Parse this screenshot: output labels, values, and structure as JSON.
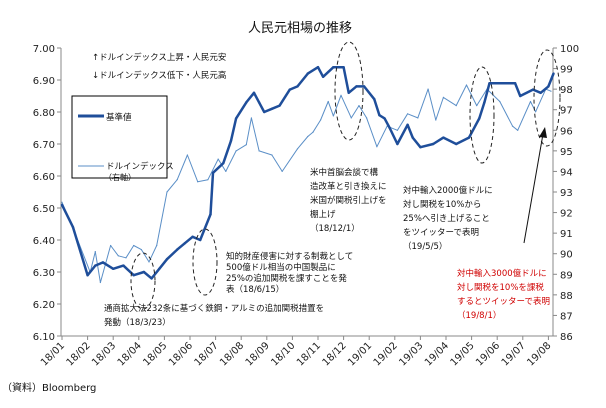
{
  "chart_data": {
    "type": "line",
    "title": "人民元相場の推移",
    "source": "（資料）Bloomberg",
    "x_ticks": [
      "18/01",
      "18/02",
      "18/03",
      "18/04",
      "18/05",
      "18/06",
      "18/07",
      "18/08",
      "18/09",
      "18/10",
      "18/11",
      "18/12",
      "19/01",
      "19/02",
      "19/03",
      "19/04",
      "19/05",
      "19/06",
      "19/07",
      "19/08"
    ],
    "x_unit": "months since 2018-01",
    "y_left": {
      "range": [
        6.1,
        7.0
      ],
      "ticks": [
        "6.10",
        "6.20",
        "6.30",
        "6.40",
        "6.50",
        "6.60",
        "6.70",
        "6.80",
        "6.90",
        "7.00"
      ]
    },
    "y_right": {
      "range": [
        86,
        100
      ],
      "ticks": [
        "86",
        "87",
        "88",
        "89",
        "90",
        "91",
        "92",
        "93",
        "94",
        "95",
        "96",
        "97",
        "98",
        "99",
        "100"
      ]
    },
    "notes": [
      "↑ドルインデックス上昇・人民元安",
      "↓ドルインデックス低下・人民元高"
    ],
    "series": [
      {
        "name": "基準値",
        "axis": "left",
        "color": "#1f4e9a",
        "x": [
          0,
          0.43,
          1.0,
          1.3,
          1.6,
          2.0,
          2.4,
          2.8,
          3.2,
          3.5,
          3.8,
          4.1,
          4.5,
          4.8,
          5.1,
          5.4,
          5.8,
          5.9,
          6.3,
          6.6,
          6.8,
          7.2,
          7.5,
          7.7,
          7.9,
          8.2,
          8.5,
          8.9,
          9.2,
          9.6,
          10.0,
          10.2,
          10.6,
          11.0,
          11.2,
          11.5,
          11.8,
          12.2,
          12.4,
          12.6,
          12.8,
          13.1,
          13.5,
          13.7,
          14.0,
          14.5,
          14.9,
          15.4,
          15.9,
          16.3,
          16.5,
          16.7,
          17.2,
          17.7,
          17.9,
          18.4,
          18.7,
          19.0,
          19.2
        ],
        "values": [
          6.51,
          6.44,
          6.29,
          6.32,
          6.33,
          6.31,
          6.32,
          6.29,
          6.3,
          6.28,
          6.31,
          6.34,
          6.37,
          6.39,
          6.41,
          6.4,
          6.48,
          6.61,
          6.64,
          6.71,
          6.78,
          6.83,
          6.86,
          6.83,
          6.8,
          6.81,
          6.82,
          6.87,
          6.88,
          6.92,
          6.94,
          6.91,
          6.94,
          6.94,
          6.86,
          6.88,
          6.88,
          6.84,
          6.79,
          6.78,
          6.75,
          6.7,
          6.76,
          6.72,
          6.69,
          6.7,
          6.72,
          6.7,
          6.72,
          6.78,
          6.83,
          6.89,
          6.89,
          6.89,
          6.85,
          6.87,
          6.86,
          6.88,
          6.92
        ]
      },
      {
        "name": "ドルインデックス（右軸）",
        "axis": "right",
        "color": "#5b8fc7",
        "x": [
          0,
          0.6,
          1.1,
          1.3,
          1.5,
          1.9,
          2.2,
          2.5,
          2.8,
          3.1,
          3.4,
          3.7,
          4.1,
          4.5,
          4.9,
          5.3,
          5.7,
          6.1,
          6.4,
          6.8,
          7.2,
          7.4,
          7.7,
          8.2,
          8.6,
          9.2,
          9.6,
          9.8,
          10.1,
          10.4,
          10.6,
          10.9,
          11.3,
          11.6,
          11.9,
          12.3,
          12.7,
          13.1,
          13.5,
          13.9,
          14.3,
          14.6,
          14.9,
          15.4,
          15.8,
          16.2,
          16.6,
          17.1,
          17.6,
          17.8,
          18.3,
          18.5,
          18.9,
          19.1
        ],
        "values": [
          92.5,
          90.7,
          89.1,
          90.1,
          88.6,
          90.4,
          89.9,
          89.8,
          90.4,
          90.2,
          89.6,
          90.4,
          93.0,
          93.6,
          94.8,
          93.5,
          93.6,
          94.6,
          94.0,
          95.0,
          95.3,
          96.6,
          95.0,
          94.8,
          94.0,
          95.1,
          95.7,
          95.9,
          96.5,
          97.4,
          96.7,
          97.7,
          96.6,
          97.2,
          96.6,
          95.2,
          96.2,
          96.0,
          96.8,
          96.6,
          98.0,
          96.5,
          97.6,
          97.2,
          98.2,
          97.2,
          98.0,
          97.4,
          96.2,
          96.0,
          97.4,
          96.9,
          98.0,
          97.9
        ]
      }
    ],
    "legend": {
      "placement": "top-left",
      "items": [
        "基準値",
        "ドルインデックス",
        "（右軸）"
      ]
    },
    "annotations": [
      {
        "lines": [
          "通商拡大法232条に基づく鉄鋼・アルミの追加関税措置を",
          "発動（18/3/23）"
        ],
        "color": "#111111"
      },
      {
        "lines": [
          "知的財産侵害に対する制裁として",
          "500億ドル相当の中国製品に",
          "25%の追加関税を課すことを発",
          "表（18/6/15）"
        ],
        "color": "#111111"
      },
      {
        "lines": [
          "米中首脳会談で構",
          "造改革と引き換えに",
          "米国が関税引上げを",
          "棚上げ",
          "（18/12/1）"
        ],
        "color": "#111111"
      },
      {
        "lines": [
          "対中輸入2000億ドルに",
          "対し関税を10%から",
          "25%へ引き上げること",
          "をツイッターで表明",
          "（19/5/5）"
        ],
        "color": "#111111"
      },
      {
        "lines": [
          "対中輸入3000億ドルに",
          "対し関税を10%を課税",
          "するとツイッターで表明",
          "（19/8/1）"
        ],
        "color": "#d00000"
      }
    ]
  }
}
